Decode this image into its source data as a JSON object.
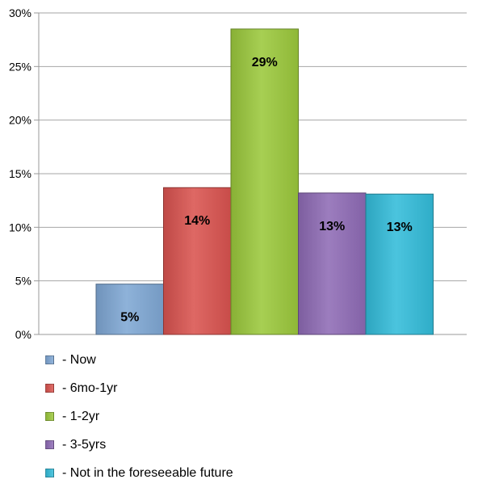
{
  "chart_data": {
    "type": "bar",
    "title": "",
    "xlabel": "",
    "ylabel": "",
    "ylim": [
      0,
      30
    ],
    "yticks": [
      "0%",
      "5%",
      "10%",
      "15%",
      "20%",
      "25%",
      "30%"
    ],
    "grid": true,
    "legend_position": "bottom-left",
    "categories": [
      "- Now",
      "- 6mo-1yr",
      "- 1-2yr",
      "- 3-5yrs",
      "- Not in the foreseeable future"
    ],
    "values": [
      4.7,
      13.7,
      28.5,
      13.2,
      13.1
    ],
    "data_labels": [
      "5%",
      "14%",
      "29%",
      "13%",
      "13%"
    ],
    "colors": [
      "#7fa7d4",
      "#d9534f",
      "#9bc83c",
      "#8e6bb5",
      "#33bcd9"
    ]
  }
}
